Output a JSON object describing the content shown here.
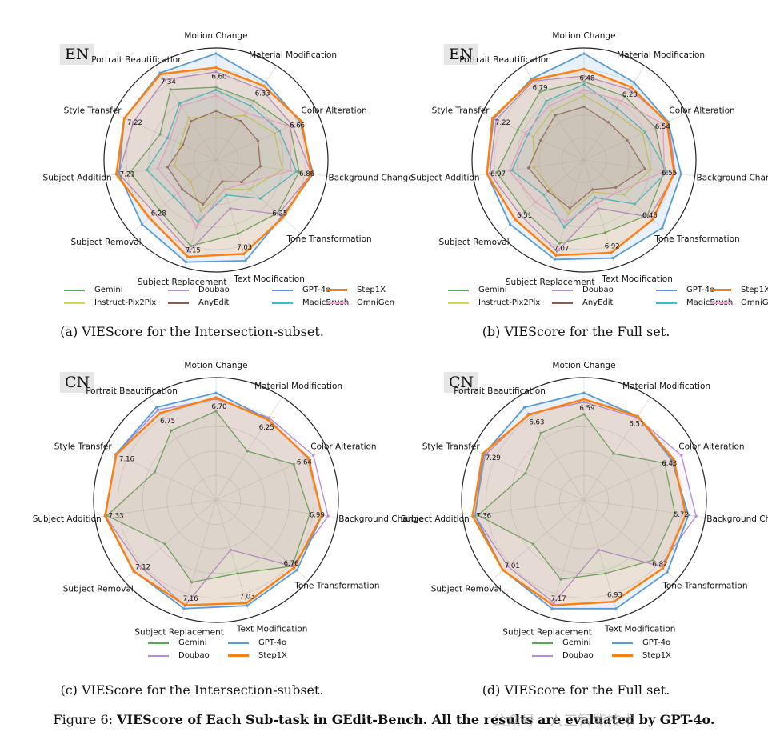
{
  "figure_caption_prefix": "Figure 6:",
  "figure_caption_title": "VIEScore of Each Sub-task in GEdit-Bench. All the results are evaluated by GPT-4o.",
  "watermark": "公众号 · 人工智能技术",
  "colors": {
    "Gemini": "#55aa55",
    "Doubao": "#b48adb",
    "GPT-4o": "#5b9bd5",
    "Step1X": "#ff7f0e",
    "Instruct-Pix2Pix": "#d4d455",
    "AnyEdit": "#8c5a4a",
    "MagicBrush": "#35c0d0",
    "OmniGen": "#f0a8dc"
  },
  "chart_data": [
    {
      "id": "a",
      "type": "radar",
      "lang": "EN",
      "caption": "(a) VIEScore for the Intersection-subset.",
      "categories": [
        "Motion Change",
        "Material Modification",
        "Color Alteration",
        "Background Change",
        "Tone Transformation",
        "Text Modification",
        "Subject Replacement",
        "Subject Removal",
        "Subject Addition",
        "Style Transfer",
        "Portrait Beautification"
      ],
      "value_labels": [
        "6.60",
        "6.33",
        "6.66",
        "6.86",
        "6.25",
        "7.03",
        "7.15",
        "6.28",
        "7.21",
        "7.22",
        "7.34"
      ],
      "rmax": 8,
      "series": [
        {
          "name": "Gemini",
          "values": [
            5.2,
            5.0,
            5.8,
            6.0,
            5.8,
            5.5,
            6.4,
            5.4,
            6.2,
            4.4,
            6.0
          ]
        },
        {
          "name": "Doubao",
          "values": [
            6.3,
            6.0,
            6.0,
            6.9,
            5.9,
            3.6,
            6.8,
            5.8,
            7.0,
            6.5,
            6.8
          ]
        },
        {
          "name": "GPT-4o",
          "values": [
            7.6,
            6.6,
            6.6,
            7.0,
            6.2,
            7.5,
            7.6,
            7.0,
            7.0,
            7.2,
            7.4
          ]
        },
        {
          "name": "Step1X",
          "values": [
            6.6,
            6.3,
            6.7,
            6.9,
            6.3,
            7.0,
            7.2,
            6.3,
            7.2,
            7.2,
            7.3
          ]
        },
        {
          "name": "Instruct-Pix2Pix",
          "values": [
            3.0,
            3.8,
            4.6,
            4.8,
            3.2,
            2.2,
            3.8,
            2.4,
            3.0,
            2.8,
            3.6
          ]
        },
        {
          "name": "AnyEdit",
          "values": [
            3.5,
            3.3,
            3.3,
            3.2,
            2.4,
            1.6,
            3.3,
            3.2,
            3.5,
            2.6,
            3.3
          ]
        },
        {
          "name": "MagicBrush",
          "values": [
            5.0,
            4.6,
            5.0,
            5.8,
            4.2,
            2.6,
            4.6,
            4.0,
            5.0,
            3.8,
            4.8
          ]
        },
        {
          "name": "OmniGen",
          "values": [
            4.6,
            4.0,
            5.8,
            5.4,
            2.6,
            2.2,
            5.0,
            3.6,
            4.2,
            3.6,
            4.6
          ]
        }
      ],
      "legend": [
        "Gemini",
        "Doubao",
        "GPT-4o",
        "Step1X",
        "Instruct-Pix2Pix",
        "AnyEdit",
        "MagicBrush",
        "OmniGen"
      ]
    },
    {
      "id": "b",
      "type": "radar",
      "lang": "EN",
      "caption": "(b) VIEScore for the Full set.",
      "categories": [
        "Motion Change",
        "Material Modification",
        "Color Alteration",
        "Background Change",
        "Tone Transformation",
        "Text Modification",
        "Subject Replacement",
        "Subject Removal",
        "Subject Addition",
        "Style Transfer",
        "Portrait Beautification"
      ],
      "value_labels": [
        "6.48",
        "6.20",
        "6.54",
        "6.55",
        "6.45",
        "6.92",
        "7.07",
        "6.51",
        "6.97",
        "7.22",
        "6.79"
      ],
      "rmax": 8,
      "series": [
        {
          "name": "Gemini",
          "values": [
            5.6,
            5.4,
            5.6,
            5.8,
            6.0,
            5.4,
            6.2,
            5.6,
            6.3,
            5.2,
            5.8
          ]
        },
        {
          "name": "Doubao",
          "values": [
            6.0,
            6.0,
            6.6,
            6.6,
            6.2,
            3.6,
            6.8,
            6.0,
            6.8,
            6.9,
            6.7
          ]
        },
        {
          "name": "GPT-4o",
          "values": [
            7.6,
            6.6,
            6.6,
            7.0,
            7.4,
            7.3,
            7.4,
            7.0,
            7.0,
            7.1,
            6.9
          ]
        },
        {
          "name": "Step1X",
          "values": [
            6.5,
            6.2,
            6.5,
            6.5,
            6.5,
            6.9,
            7.1,
            6.5,
            7.0,
            7.2,
            6.8
          ]
        },
        {
          "name": "Instruct-Pix2Pix",
          "values": [
            4.6,
            4.0,
            4.6,
            4.8,
            3.8,
            2.4,
            4.0,
            3.2,
            3.6,
            4.0,
            4.2
          ]
        },
        {
          "name": "AnyEdit",
          "values": [
            3.8,
            3.2,
            3.4,
            4.4,
            3.0,
            2.2,
            3.6,
            3.4,
            4.0,
            3.4,
            3.8
          ]
        },
        {
          "name": "MagicBrush",
          "values": [
            5.4,
            4.4,
            4.8,
            6.0,
            4.8,
            2.8,
            5.0,
            3.8,
            5.2,
            4.4,
            5.0
          ]
        },
        {
          "name": "OmniGen",
          "values": [
            5.0,
            5.0,
            6.2,
            5.8,
            3.4,
            3.2,
            4.6,
            4.6,
            5.4,
            4.6,
            4.6
          ]
        }
      ],
      "legend": [
        "Gemini",
        "Doubao",
        "GPT-4o",
        "Step1X",
        "Instruct-Pix2Pix",
        "AnyEdit",
        "MagicBrush",
        "OmniGen"
      ]
    },
    {
      "id": "c",
      "type": "radar",
      "lang": "CN",
      "caption": "(c) VIEScore for the Intersection-subset.",
      "categories": [
        "Motion Change",
        "Material Modification",
        "Color Alteration",
        "Background Change",
        "Tone Transformation",
        "Text Modification",
        "Subject Replacement",
        "Subject Removal",
        "Subject Addition",
        "Style Transfer",
        "Portrait Beautification"
      ],
      "value_labels": [
        "6.70",
        "6.25",
        "6.64",
        "6.99",
        "6.76",
        "7.03",
        "7.16",
        "7.12",
        "7.33",
        "7.16",
        "6.75"
      ],
      "rmax": 8,
      "series": [
        {
          "name": "Gemini",
          "values": [
            5.8,
            3.8,
            5.6,
            6.2,
            6.6,
            5.0,
            5.6,
            4.4,
            7.2,
            4.4,
            5.4
          ]
        },
        {
          "name": "Doubao",
          "values": [
            6.6,
            6.4,
            7.0,
            7.4,
            6.6,
            3.4,
            7.2,
            6.6,
            7.3,
            7.2,
            7.0
          ]
        },
        {
          "name": "GPT-4o",
          "values": [
            7.0,
            6.3,
            6.6,
            7.0,
            7.0,
            7.2,
            7.4,
            7.1,
            7.3,
            7.2,
            7.2
          ]
        },
        {
          "name": "Step1X",
          "values": [
            6.7,
            6.25,
            6.64,
            6.99,
            6.76,
            7.03,
            7.16,
            7.12,
            7.33,
            7.16,
            6.75
          ]
        }
      ],
      "legend": [
        "Gemini",
        "GPT-4o",
        "Doubao",
        "Step1X"
      ]
    },
    {
      "id": "d",
      "type": "radar",
      "lang": "CN",
      "caption": "(d) VIEScore for the Full set.",
      "categories": [
        "Motion Change",
        "Material Modification",
        "Color Alteration",
        "Background Change",
        "Tone Transformation",
        "Text Modification",
        "Subject Replacement",
        "Subject Removal",
        "Subject Addition",
        "Style Transfer",
        "Portrait Beautification"
      ],
      "value_labels": [
        "6.59",
        "6.51",
        "6.43",
        "6.72",
        "6.82",
        "6.93",
        "7.17",
        "7.01",
        "7.36",
        "7.29",
        "6.63"
      ],
      "rmax": 8,
      "series": [
        {
          "name": "Gemini",
          "values": [
            5.6,
            3.6,
            5.8,
            6.0,
            6.0,
            5.0,
            5.4,
            4.4,
            7.0,
            4.2,
            5.2
          ]
        },
        {
          "name": "Doubao",
          "values": [
            6.4,
            6.4,
            7.0,
            7.4,
            6.6,
            3.4,
            7.0,
            6.6,
            7.2,
            7.1,
            6.7
          ]
        },
        {
          "name": "GPT-4o",
          "values": [
            7.0,
            6.5,
            6.3,
            6.9,
            7.2,
            7.4,
            7.4,
            7.0,
            7.2,
            7.2,
            7.2
          ]
        },
        {
          "name": "Step1X",
          "values": [
            6.59,
            6.51,
            6.43,
            6.72,
            6.82,
            6.93,
            7.17,
            7.01,
            7.36,
            7.29,
            6.63
          ]
        }
      ],
      "legend": [
        "Gemini",
        "GPT-4o",
        "Doubao",
        "Step1X"
      ]
    }
  ]
}
